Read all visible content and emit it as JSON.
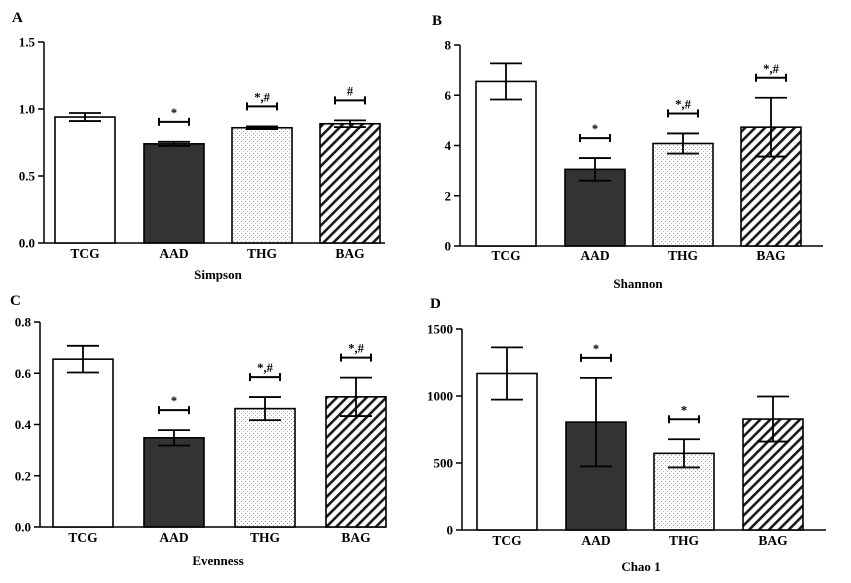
{
  "panels_order": [
    "A",
    "B",
    "C",
    "D"
  ],
  "chart_data": [
    {
      "panel": "A",
      "type": "bar",
      "xlabel": "Simpson",
      "ylabel": "",
      "categories": [
        "TCG",
        "AAD",
        "THG",
        "BAG"
      ],
      "values": [
        0.94,
        0.74,
        0.86,
        0.89
      ],
      "errors": [
        0.03,
        0.015,
        0.01,
        0.025
      ],
      "annotations": [
        "",
        "*",
        "*,#",
        "#"
      ],
      "ylim": [
        0,
        1.5
      ],
      "yticks": [
        0.0,
        0.5,
        1.0,
        1.5
      ],
      "ytick_labels": [
        "0.0",
        "0.5",
        "1.0",
        "1.5"
      ],
      "patterns": [
        "white",
        "dark",
        "dots",
        "hatch"
      ]
    },
    {
      "panel": "B",
      "type": "bar",
      "xlabel": "Shannon",
      "ylabel": "",
      "categories": [
        "TCG",
        "AAD",
        "THG",
        "BAG"
      ],
      "values": [
        6.55,
        3.05,
        4.08,
        4.73
      ],
      "errors": [
        0.72,
        0.45,
        0.4,
        1.17
      ],
      "annotations": [
        "",
        "*",
        "*,#",
        "*,#"
      ],
      "ylim": [
        0,
        8
      ],
      "yticks": [
        0,
        2,
        4,
        6,
        8
      ],
      "ytick_labels": [
        "0",
        "2",
        "4",
        "6",
        "8"
      ],
      "patterns": [
        "white",
        "dark",
        "dots",
        "hatch"
      ]
    },
    {
      "panel": "C",
      "type": "bar",
      "xlabel": "Evenness",
      "ylabel": "",
      "categories": [
        "TCG",
        "AAD",
        "THG",
        "BAG"
      ],
      "values": [
        0.655,
        0.348,
        0.462,
        0.508
      ],
      "errors": [
        0.052,
        0.03,
        0.045,
        0.075
      ],
      "annotations": [
        "",
        "*",
        "*,#",
        "*,#"
      ],
      "ylim": [
        0,
        0.8
      ],
      "yticks": [
        0.0,
        0.2,
        0.4,
        0.6,
        0.8
      ],
      "ytick_labels": [
        "0.0",
        "0.2",
        "0.4",
        "0.6",
        "0.8"
      ],
      "patterns": [
        "white",
        "dark",
        "dots",
        "hatch"
      ]
    },
    {
      "panel": "D",
      "type": "bar",
      "xlabel": "Chao 1",
      "ylabel": "",
      "categories": [
        "TCG",
        "AAD",
        "THG",
        "BAG"
      ],
      "values": [
        1168,
        805,
        572,
        828
      ],
      "errors": [
        195,
        330,
        105,
        168
      ],
      "annotations": [
        "",
        "*",
        "*",
        ""
      ],
      "ylim": [
        0,
        1500
      ],
      "yticks": [
        0,
        500,
        1000,
        1500
      ],
      "ytick_labels": [
        "0",
        "500",
        "1000",
        "1500"
      ],
      "patterns": [
        "white",
        "dark",
        "dots",
        "hatch"
      ]
    }
  ]
}
